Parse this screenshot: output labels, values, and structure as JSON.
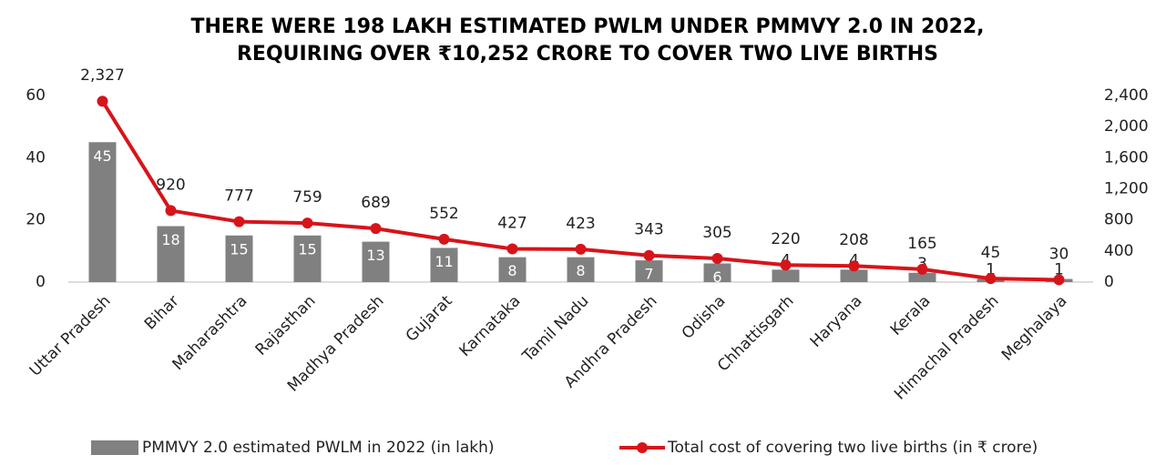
{
  "chart_data": {
    "type": "bar_line",
    "title": [
      "THERE WERE 198 LAKH ESTIMATED PWLM UNDER PMMVY 2.0 IN 2022,",
      "REQUIRING OVER ₹10,252 CRORE TO COVER TWO LIVE BIRTHS"
    ],
    "categories": [
      "Uttar Pradesh",
      "Bihar",
      "Maharashtra",
      "Rajasthan",
      "Madhya Pradesh",
      "Gujarat",
      "Karnataka",
      "Tamil Nadu",
      "Andhra Pradesh",
      "Odisha",
      "Chhattisgarh",
      "Haryana",
      "Kerala",
      "Himachal Pradesh",
      "Meghalaya"
    ],
    "series": [
      {
        "name": "PMMVY 2.0 estimated PWLM in 2022 (in lakh)",
        "color": "#808080",
        "type": "bar",
        "values": [
          45,
          18,
          15,
          15,
          13,
          11,
          8,
          8,
          7,
          6,
          4,
          4,
          3,
          1,
          1
        ]
      },
      {
        "name": "Total cost of covering two live births (in ₹ crore)",
        "color": "#d7141a",
        "type": "line",
        "axis": "y2",
        "values": [
          2327,
          920,
          777,
          759,
          689,
          552,
          427,
          423,
          343,
          305,
          220,
          208,
          165,
          45,
          30
        ],
        "value_labels": [
          "2,327",
          "920",
          "777",
          "759",
          "689",
          "552",
          "427",
          "423",
          "343",
          "305",
          "220",
          "208",
          "165",
          "45",
          "30"
        ]
      }
    ],
    "ylim": [
      0,
      60
    ],
    "yticks": [
      0,
      20,
      40,
      60
    ],
    "y2lim": [
      0,
      2400
    ],
    "y2ticks": [
      0,
      400,
      800,
      {
        "value": 1200,
        "label": "1,200"
      },
      {
        "value": 1600,
        "label": "1,600"
      },
      {
        "value": 2000,
        "label": "2,000"
      },
      {
        "value": 2400,
        "label": "2,400"
      }
    ],
    "legend": "bottom"
  }
}
